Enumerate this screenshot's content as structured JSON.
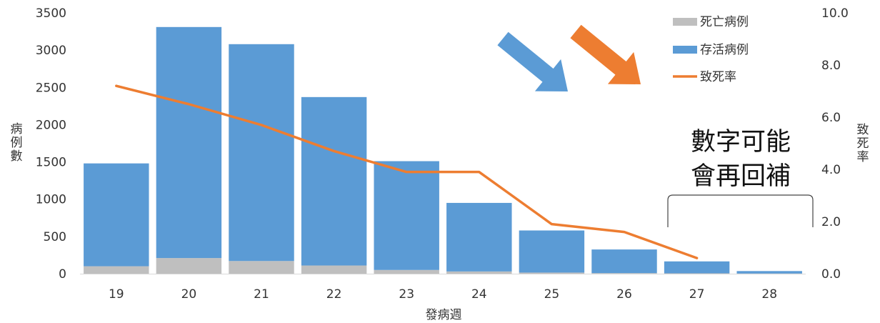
{
  "chart_data": {
    "type": "bar",
    "stacked": true,
    "categories": [
      "19",
      "20",
      "21",
      "22",
      "23",
      "24",
      "25",
      "26",
      "27",
      "28"
    ],
    "series": [
      {
        "name": "死亡病例",
        "type": "bar",
        "axis": "left",
        "color": "#bfbfbf",
        "values": [
          100,
          210,
          170,
          110,
          50,
          30,
          15,
          8,
          5,
          2
        ]
      },
      {
        "name": "存活病例",
        "type": "bar",
        "axis": "left",
        "color": "#5b9bd5",
        "values": [
          1380,
          3100,
          2910,
          2260,
          1460,
          920,
          565,
          317,
          160,
          33
        ]
      },
      {
        "name": "致死率",
        "type": "line",
        "axis": "right",
        "color": "#ed7d31",
        "values": [
          7.2,
          6.5,
          5.7,
          4.7,
          3.9,
          3.9,
          1.9,
          1.6,
          0.6,
          null
        ]
      }
    ],
    "xlabel": "發病週",
    "ylabel": "病例數",
    "y2label": "致死率",
    "ylim": [
      0,
      3500
    ],
    "y2lim": [
      0,
      10
    ],
    "yticks": [
      "0",
      "500",
      "1000",
      "1500",
      "2000",
      "2500",
      "3000",
      "3500"
    ],
    "y2ticks": [
      "0.0",
      "2.0",
      "4.0",
      "6.0",
      "8.0",
      "10.0"
    ],
    "grid": false,
    "legend_position": "top-right",
    "annotation": {
      "lines": [
        "數字可能",
        "會再回補"
      ],
      "bracket_categories": [
        "27",
        "28"
      ]
    },
    "arrows": [
      {
        "color": "#5b9bd5",
        "direction": "down-right"
      },
      {
        "color": "#ed7d31",
        "direction": "down-right"
      }
    ]
  }
}
